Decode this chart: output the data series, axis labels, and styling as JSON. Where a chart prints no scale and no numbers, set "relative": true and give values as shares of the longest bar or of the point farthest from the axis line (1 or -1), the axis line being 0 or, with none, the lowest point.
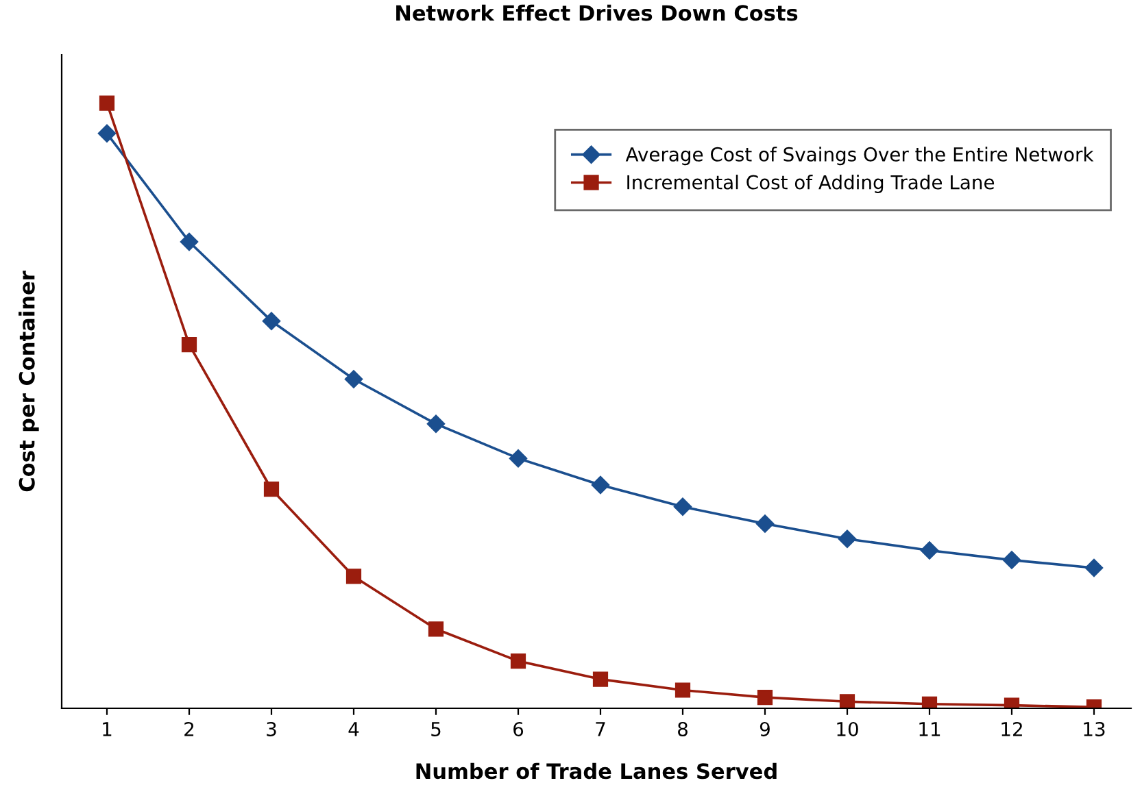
{
  "chart_data": {
    "type": "line",
    "title": "Network Effect Drives Down Costs",
    "xlabel": "Number of Trade Lanes Served",
    "ylabel": "Cost per Container",
    "relative": true,
    "grid": false,
    "legend": "top right",
    "categories": [
      "1",
      "2",
      "3",
      "4",
      "5",
      "6",
      "7",
      "8",
      "9",
      "10",
      "11",
      "12",
      "13"
    ],
    "series": [
      {
        "name": "Average Cost of Svaings Over the Entire Network",
        "color": "#1b4f8f",
        "marker": "diamond",
        "values": [
          0.95,
          0.771,
          0.64,
          0.544,
          0.47,
          0.413,
          0.369,
          0.333,
          0.305,
          0.28,
          0.261,
          0.245,
          0.232
        ]
      },
      {
        "name": "Incremental Cost of Adding Trade Lane",
        "color": "#9b1d0e",
        "marker": "square",
        "values": [
          1.0,
          0.601,
          0.362,
          0.218,
          0.131,
          0.078,
          0.048,
          0.03,
          0.018,
          0.011,
          0.007,
          0.005,
          0.002
        ]
      }
    ]
  }
}
